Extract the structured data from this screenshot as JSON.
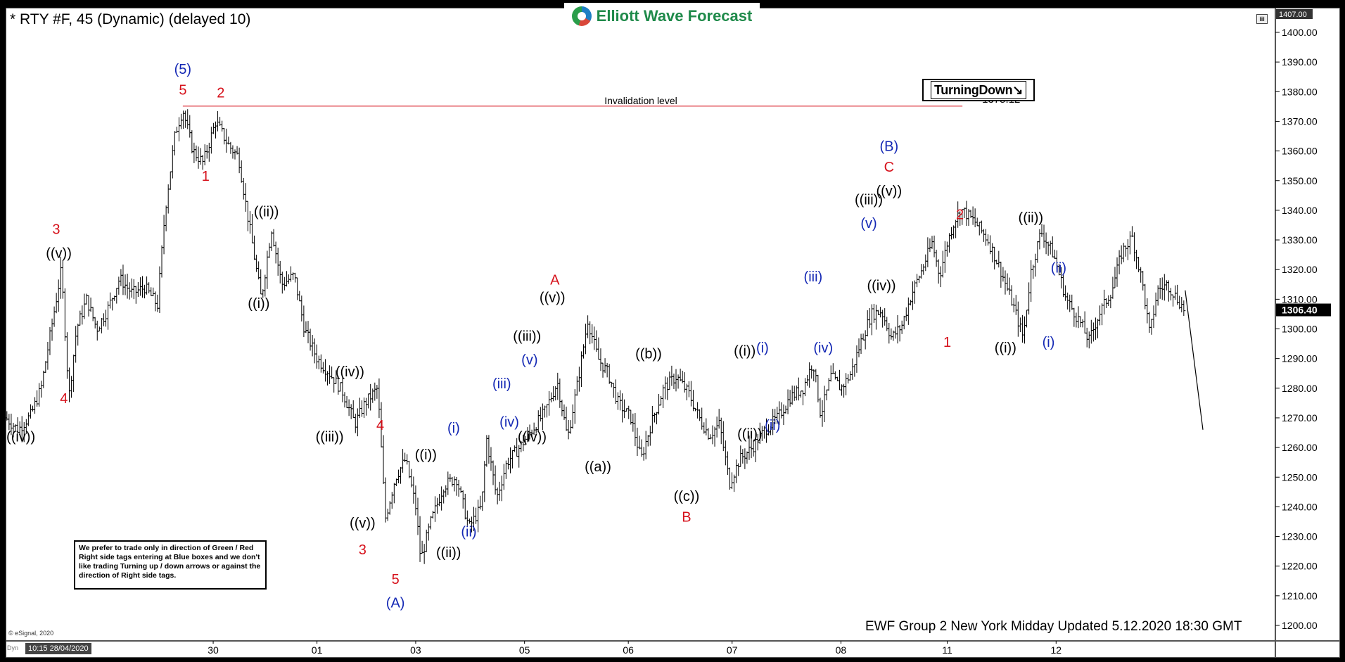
{
  "header": {
    "title": "* RTY #F, 45 (Dynamic) (delayed 10)",
    "logo_text": "Elliott Wave Forecast",
    "badge_text": "TurningDown↘"
  },
  "note_text": "We prefer to trade only in direction of Green / Red Right side tags entering at Blue boxes and we don't like trading Turning up / down arrows or against the direction of Right side tags.",
  "footer_text": "EWF Group 2 New York Midday Updated 5.12.2020 18:30 GMT",
  "copyright": "© eSignal, 2020",
  "timestamp": "10:15 28/04/2020",
  "dyn_label": "Dyn",
  "colors": {
    "red": "#d6111b",
    "blue": "#1428b4",
    "black": "#000000",
    "price_tag": "#000000"
  },
  "chart_data": {
    "type": "ohlc",
    "title": "* RTY #F, 45 (Dynamic) (delayed 10)",
    "ylim": [
      1195,
      1408
    ],
    "y_ticks": [
      "1200.00",
      "1210.00",
      "1220.00",
      "1230.00",
      "1240.00",
      "1250.00",
      "1260.00",
      "1270.00",
      "1280.00",
      "1290.00",
      "1300.00",
      "1310.00",
      "1320.00",
      "1330.00",
      "1340.00",
      "1350.00",
      "1360.00",
      "1370.00",
      "1380.00",
      "1390.00",
      "1400.00"
    ],
    "y_top_label": "1407.00",
    "last_price": "1306.40",
    "x_ticks": [
      {
        "label": "30",
        "t": 8.2
      },
      {
        "label": "01",
        "t": 12.3
      },
      {
        "label": "03",
        "t": 16.2
      },
      {
        "label": "05",
        "t": 20.5
      },
      {
        "label": "06",
        "t": 24.6
      },
      {
        "label": "07",
        "t": 28.7
      },
      {
        "label": "08",
        "t": 33.0
      },
      {
        "label": "11",
        "t": 37.2
      },
      {
        "label": "12",
        "t": 41.5
      }
    ],
    "t_range": [
      0,
      47.3
    ],
    "price_path": [
      [
        0.0,
        1270
      ],
      [
        0.5,
        1266
      ],
      [
        1.0,
        1271
      ],
      [
        1.4,
        1280
      ],
      [
        1.8,
        1300
      ],
      [
        2.2,
        1320
      ],
      [
        2.5,
        1277
      ],
      [
        2.8,
        1300
      ],
      [
        3.2,
        1310
      ],
      [
        3.6,
        1300
      ],
      [
        4.0,
        1306
      ],
      [
        4.5,
        1317
      ],
      [
        5.0,
        1312
      ],
      [
        5.5,
        1314
      ],
      [
        6.0,
        1308
      ],
      [
        6.3,
        1340
      ],
      [
        6.7,
        1366
      ],
      [
        7.0,
        1374
      ],
      [
        7.4,
        1360
      ],
      [
        7.8,
        1356
      ],
      [
        8.3,
        1370
      ],
      [
        8.8,
        1362
      ],
      [
        9.2,
        1358
      ],
      [
        9.6,
        1336
      ],
      [
        10.1,
        1310
      ],
      [
        10.5,
        1334
      ],
      [
        10.9,
        1315
      ],
      [
        11.4,
        1318
      ],
      [
        11.8,
        1300
      ],
      [
        12.3,
        1290
      ],
      [
        12.8,
        1285
      ],
      [
        13.3,
        1279
      ],
      [
        13.8,
        1268
      ],
      [
        14.2,
        1275
      ],
      [
        14.7,
        1280
      ],
      [
        15.0,
        1236
      ],
      [
        15.4,
        1250
      ],
      [
        15.8,
        1256
      ],
      [
        16.2,
        1240
      ],
      [
        16.4,
        1222
      ],
      [
        16.8,
        1235
      ],
      [
        17.3,
        1247
      ],
      [
        17.8,
        1250
      ],
      [
        18.3,
        1233
      ],
      [
        18.8,
        1240
      ],
      [
        19.0,
        1263
      ],
      [
        19.4,
        1243
      ],
      [
        19.8,
        1255
      ],
      [
        20.3,
        1260
      ],
      [
        20.8,
        1266
      ],
      [
        21.3,
        1272
      ],
      [
        21.8,
        1282
      ],
      [
        22.2,
        1263
      ],
      [
        22.6,
        1282
      ],
      [
        23.0,
        1303
      ],
      [
        23.4,
        1290
      ],
      [
        23.8,
        1285
      ],
      [
        24.2,
        1275
      ],
      [
        24.7,
        1270
      ],
      [
        25.1,
        1256
      ],
      [
        25.5,
        1268
      ],
      [
        26.0,
        1280
      ],
      [
        26.5,
        1284
      ],
      [
        27.0,
        1278
      ],
      [
        27.4,
        1270
      ],
      [
        27.8,
        1264
      ],
      [
        28.2,
        1268
      ],
      [
        28.6,
        1248
      ],
      [
        29.0,
        1256
      ],
      [
        29.5,
        1260
      ],
      [
        30.0,
        1266
      ],
      [
        30.5,
        1270
      ],
      [
        31.0,
        1277
      ],
      [
        31.5,
        1280
      ],
      [
        31.9,
        1289
      ],
      [
        32.2,
        1271
      ],
      [
        32.6,
        1284
      ],
      [
        33.0,
        1280
      ],
      [
        33.4,
        1285
      ],
      [
        33.8,
        1296
      ],
      [
        34.2,
        1305
      ],
      [
        34.6,
        1306
      ],
      [
        35.0,
        1297
      ],
      [
        35.4,
        1301
      ],
      [
        35.8,
        1312
      ],
      [
        36.2,
        1320
      ],
      [
        36.6,
        1329
      ],
      [
        36.9,
        1318
      ],
      [
        37.2,
        1329
      ],
      [
        37.5,
        1337
      ],
      [
        37.8,
        1340
      ],
      [
        38.3,
        1336
      ],
      [
        38.8,
        1330
      ],
      [
        39.3,
        1320
      ],
      [
        39.8,
        1308
      ],
      [
        40.2,
        1297
      ],
      [
        40.5,
        1319
      ],
      [
        40.9,
        1333
      ],
      [
        41.4,
        1325
      ],
      [
        41.9,
        1310
      ],
      [
        42.4,
        1303
      ],
      [
        42.8,
        1296
      ],
      [
        43.2,
        1305
      ],
      [
        43.7,
        1313
      ],
      [
        44.1,
        1326
      ],
      [
        44.5,
        1331
      ],
      [
        44.9,
        1316
      ],
      [
        45.2,
        1298
      ],
      [
        45.5,
        1313
      ],
      [
        45.9,
        1315
      ],
      [
        46.3,
        1310
      ],
      [
        46.6,
        1306
      ]
    ],
    "projection": [
      [
        46.6,
        1313
      ],
      [
        47.3,
        1266
      ]
    ],
    "invalidation": {
      "label": "Invalidation level",
      "value_label": "1375.12",
      "price": 1375.12,
      "t_start": 7.0,
      "t_end": 37.8
    },
    "annotations": [
      {
        "text": "((iv))",
        "t": 0.6,
        "p": 1262,
        "color": "black"
      },
      {
        "text": "3",
        "t": 2.0,
        "p": 1332,
        "color": "red"
      },
      {
        "text": "((v))",
        "t": 2.1,
        "p": 1324,
        "color": "black"
      },
      {
        "text": "4",
        "t": 2.3,
        "p": 1275,
        "color": "red"
      },
      {
        "text": "(5)",
        "t": 7.0,
        "p": 1386,
        "color": "blue"
      },
      {
        "text": "5",
        "t": 7.0,
        "p": 1379,
        "color": "red"
      },
      {
        "text": "1",
        "t": 7.9,
        "p": 1350,
        "color": "red"
      },
      {
        "text": "2",
        "t": 8.5,
        "p": 1378,
        "color": "red"
      },
      {
        "text": "((ii))",
        "t": 10.3,
        "p": 1338,
        "color": "black"
      },
      {
        "text": "((i))",
        "t": 10.0,
        "p": 1307,
        "color": "black"
      },
      {
        "text": "((iv))",
        "t": 13.6,
        "p": 1284,
        "color": "black"
      },
      {
        "text": "((iii))",
        "t": 12.8,
        "p": 1262,
        "color": "black"
      },
      {
        "text": "4",
        "t": 14.8,
        "p": 1266,
        "color": "red"
      },
      {
        "text": "((v))",
        "t": 14.1,
        "p": 1233,
        "color": "black"
      },
      {
        "text": "3",
        "t": 14.1,
        "p": 1224,
        "color": "red"
      },
      {
        "text": "5",
        "t": 15.4,
        "p": 1214,
        "color": "red"
      },
      {
        "text": "(A)",
        "t": 15.4,
        "p": 1206,
        "color": "blue"
      },
      {
        "text": "((i))",
        "t": 16.6,
        "p": 1256,
        "color": "black"
      },
      {
        "text": "((ii))",
        "t": 17.5,
        "p": 1223,
        "color": "black"
      },
      {
        "text": "(i)",
        "t": 17.7,
        "p": 1265,
        "color": "blue"
      },
      {
        "text": "(ii)",
        "t": 18.3,
        "p": 1230,
        "color": "blue"
      },
      {
        "text": "(iii)",
        "t": 19.6,
        "p": 1280,
        "color": "blue"
      },
      {
        "text": "(iv)",
        "t": 19.9,
        "p": 1267,
        "color": "blue"
      },
      {
        "text": "((iii))",
        "t": 20.6,
        "p": 1296,
        "color": "black"
      },
      {
        "text": "(v)",
        "t": 20.7,
        "p": 1288,
        "color": "blue"
      },
      {
        "text": "((iv))",
        "t": 20.8,
        "p": 1262,
        "color": "black"
      },
      {
        "text": "A",
        "t": 21.7,
        "p": 1315,
        "color": "red"
      },
      {
        "text": "((v))",
        "t": 21.6,
        "p": 1309,
        "color": "black"
      },
      {
        "text": "((a))",
        "t": 23.4,
        "p": 1252,
        "color": "black"
      },
      {
        "text": "((b))",
        "t": 25.4,
        "p": 1290,
        "color": "black"
      },
      {
        "text": "((c))",
        "t": 26.9,
        "p": 1242,
        "color": "black"
      },
      {
        "text": "B",
        "t": 26.9,
        "p": 1235,
        "color": "red"
      },
      {
        "text": "((i))",
        "t": 29.2,
        "p": 1291,
        "color": "black"
      },
      {
        "text": "(i)",
        "t": 29.9,
        "p": 1292,
        "color": "blue"
      },
      {
        "text": "((ii))",
        "t": 29.4,
        "p": 1263,
        "color": "black"
      },
      {
        "text": "(ii)",
        "t": 30.3,
        "p": 1266,
        "color": "blue"
      },
      {
        "text": "(iii)",
        "t": 31.9,
        "p": 1316,
        "color": "blue"
      },
      {
        "text": "(iv)",
        "t": 32.3,
        "p": 1292,
        "color": "blue"
      },
      {
        "text": "((iii))",
        "t": 34.1,
        "p": 1342,
        "color": "black"
      },
      {
        "text": "(v)",
        "t": 34.1,
        "p": 1334,
        "color": "blue"
      },
      {
        "text": "((iv))",
        "t": 34.6,
        "p": 1313,
        "color": "black"
      },
      {
        "text": "(B)",
        "t": 34.9,
        "p": 1360,
        "color": "blue"
      },
      {
        "text": "C",
        "t": 34.9,
        "p": 1353,
        "color": "red"
      },
      {
        "text": "((v))",
        "t": 34.9,
        "p": 1345,
        "color": "black"
      },
      {
        "text": "2",
        "t": 37.7,
        "p": 1337,
        "color": "red"
      },
      {
        "text": "1",
        "t": 37.2,
        "p": 1294,
        "color": "red"
      },
      {
        "text": "((i))",
        "t": 39.5,
        "p": 1292,
        "color": "black"
      },
      {
        "text": "((ii))",
        "t": 40.5,
        "p": 1336,
        "color": "black"
      },
      {
        "text": "(ii)",
        "t": 41.6,
        "p": 1319,
        "color": "blue"
      },
      {
        "text": "(i)",
        "t": 41.2,
        "p": 1294,
        "color": "blue"
      }
    ]
  }
}
